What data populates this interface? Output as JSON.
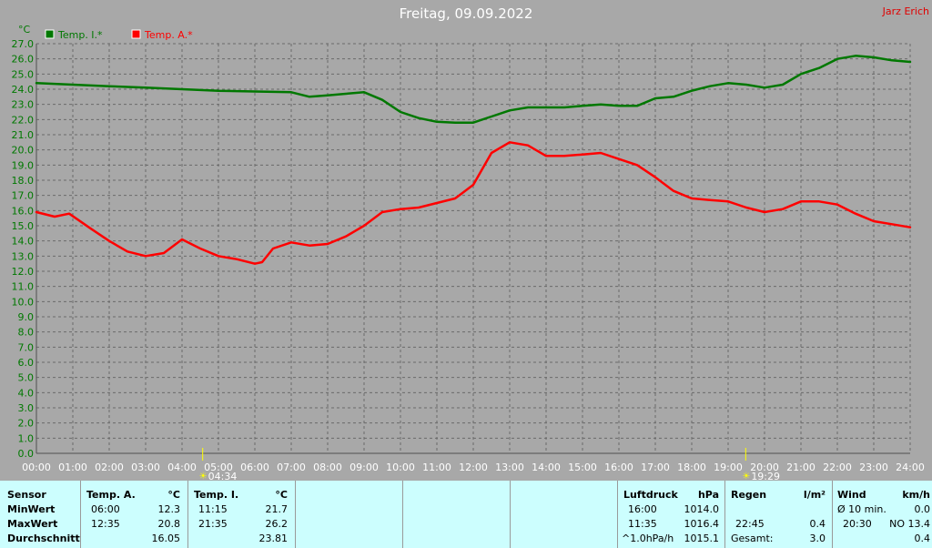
{
  "header": {
    "title": "Freitag, 09.09.2022",
    "author": "Jarz Erich"
  },
  "chart_data": {
    "type": "line",
    "ylabel": "°C",
    "ylim": [
      0,
      27
    ],
    "ystep": 1,
    "x_unit": "hours",
    "xlim": [
      0,
      24
    ],
    "grid": true,
    "legend_position": "top-left",
    "x_ticks": [
      "00:00",
      "01:00",
      "02:00",
      "03:00",
      "04:00",
      "05:00",
      "06:00",
      "07:00",
      "08:00",
      "09:00",
      "10:00",
      "11:00",
      "12:00",
      "13:00",
      "14:00",
      "15:00",
      "16:00",
      "17:00",
      "18:00",
      "19:00",
      "20:00",
      "21:00",
      "22:00",
      "23:00",
      "24:00"
    ],
    "y_ticks": [
      "0.0",
      "1.0",
      "2.0",
      "3.0",
      "4.0",
      "5.0",
      "6.0",
      "7.0",
      "8.0",
      "9.0",
      "10.0",
      "11.0",
      "12.0",
      "13.0",
      "14.0",
      "15.0",
      "16.0",
      "17.0",
      "18.0",
      "19.0",
      "20.0",
      "21.0",
      "22.0",
      "23.0",
      "24.0",
      "25.0",
      "26.0",
      "27.0"
    ],
    "markers": [
      {
        "label": "04:34",
        "x": 4.567
      },
      {
        "label": "19:29",
        "x": 19.483
      }
    ],
    "series": [
      {
        "name": "Temp. I.*",
        "color": "#007800",
        "points": [
          [
            0,
            24.4
          ],
          [
            1,
            24.3
          ],
          [
            2,
            24.2
          ],
          [
            3,
            24.1
          ],
          [
            4,
            24.0
          ],
          [
            5,
            23.9
          ],
          [
            6,
            23.85
          ],
          [
            7,
            23.8
          ],
          [
            7.5,
            23.5
          ],
          [
            8,
            23.6
          ],
          [
            8.5,
            23.7
          ],
          [
            9,
            23.8
          ],
          [
            9.5,
            23.3
          ],
          [
            10,
            22.5
          ],
          [
            10.5,
            22.1
          ],
          [
            11,
            21.85
          ],
          [
            11.5,
            21.8
          ],
          [
            12,
            21.8
          ],
          [
            12.5,
            22.2
          ],
          [
            13,
            22.6
          ],
          [
            13.5,
            22.8
          ],
          [
            14,
            22.8
          ],
          [
            14.5,
            22.8
          ],
          [
            15,
            22.9
          ],
          [
            15.5,
            23.0
          ],
          [
            16,
            22.9
          ],
          [
            16.5,
            22.9
          ],
          [
            17,
            23.4
          ],
          [
            17.5,
            23.5
          ],
          [
            18,
            23.9
          ],
          [
            18.5,
            24.2
          ],
          [
            19,
            24.4
          ],
          [
            19.5,
            24.3
          ],
          [
            20,
            24.1
          ],
          [
            20.5,
            24.3
          ],
          [
            21,
            25.0
          ],
          [
            21.5,
            25.4
          ],
          [
            22,
            26.0
          ],
          [
            22.5,
            26.2
          ],
          [
            23,
            26.1
          ],
          [
            23.5,
            25.9
          ],
          [
            24,
            25.8
          ]
        ]
      },
      {
        "name": "Temp. A.*",
        "color": "#ff0000",
        "points": [
          [
            0,
            15.9
          ],
          [
            0.5,
            15.6
          ],
          [
            0.9,
            15.8
          ],
          [
            1.5,
            14.8
          ],
          [
            2,
            14.0
          ],
          [
            2.5,
            13.3
          ],
          [
            3,
            13.0
          ],
          [
            3.5,
            13.2
          ],
          [
            4,
            14.1
          ],
          [
            4.5,
            13.5
          ],
          [
            5,
            13.0
          ],
          [
            5.5,
            12.8
          ],
          [
            6,
            12.5
          ],
          [
            6.2,
            12.6
          ],
          [
            6.5,
            13.5
          ],
          [
            7,
            13.9
          ],
          [
            7.5,
            13.7
          ],
          [
            8,
            13.8
          ],
          [
            8.5,
            14.3
          ],
          [
            9,
            15.0
          ],
          [
            9.5,
            15.9
          ],
          [
            10,
            16.1
          ],
          [
            10.5,
            16.2
          ],
          [
            11,
            16.5
          ],
          [
            11.5,
            16.8
          ],
          [
            12,
            17.7
          ],
          [
            12.5,
            19.8
          ],
          [
            13,
            20.5
          ],
          [
            13.5,
            20.3
          ],
          [
            14,
            19.6
          ],
          [
            14.5,
            19.6
          ],
          [
            15,
            19.7
          ],
          [
            15.5,
            19.8
          ],
          [
            16,
            19.4
          ],
          [
            16.5,
            19.0
          ],
          [
            17,
            18.2
          ],
          [
            17.5,
            17.3
          ],
          [
            18,
            16.8
          ],
          [
            18.5,
            16.7
          ],
          [
            19,
            16.6
          ],
          [
            19.5,
            16.2
          ],
          [
            20,
            15.9
          ],
          [
            20.5,
            16.1
          ],
          [
            21,
            16.6
          ],
          [
            21.5,
            16.6
          ],
          [
            22,
            16.4
          ],
          [
            22.5,
            15.8
          ],
          [
            23,
            15.3
          ],
          [
            23.5,
            15.1
          ],
          [
            24,
            14.9
          ]
        ]
      }
    ]
  },
  "stats": {
    "sensor_header": "Sensor",
    "min_label": "MinWert",
    "max_label": "MaxWert",
    "avg_label": "Durchschnitt",
    "temp_a": {
      "header": "Temp. A.",
      "unit": "°C",
      "min_time": "06:00",
      "min": "12.3",
      "max_time": "12:35",
      "max": "20.8",
      "avg": "16.05"
    },
    "temp_i": {
      "header": "Temp. I.",
      "unit": "°C",
      "min_time": "11:15",
      "min": "21.7",
      "max_time": "21:35",
      "max": "26.2",
      "avg": "23.81"
    },
    "pressure": {
      "header": "Luftdruck",
      "unit": "hPa",
      "min_time": "16:00",
      "min": "1014.0",
      "max_time": "11:35",
      "max": "1016.4",
      "trend_label": "^1.0hPa/h",
      "trend": "1015.1"
    },
    "rain": {
      "header": "Regen",
      "unit": "l/m²",
      "time": "22:45",
      "value": "0.4",
      "total_label": "Gesamt:",
      "total": "3.0"
    },
    "wind": {
      "header": "Wind",
      "unit": "km/h",
      "avg_label": "Ø 10 min.",
      "avg": "0.0",
      "max_time": "20:30",
      "max": "NO 13.4",
      "last": "0.4"
    }
  }
}
